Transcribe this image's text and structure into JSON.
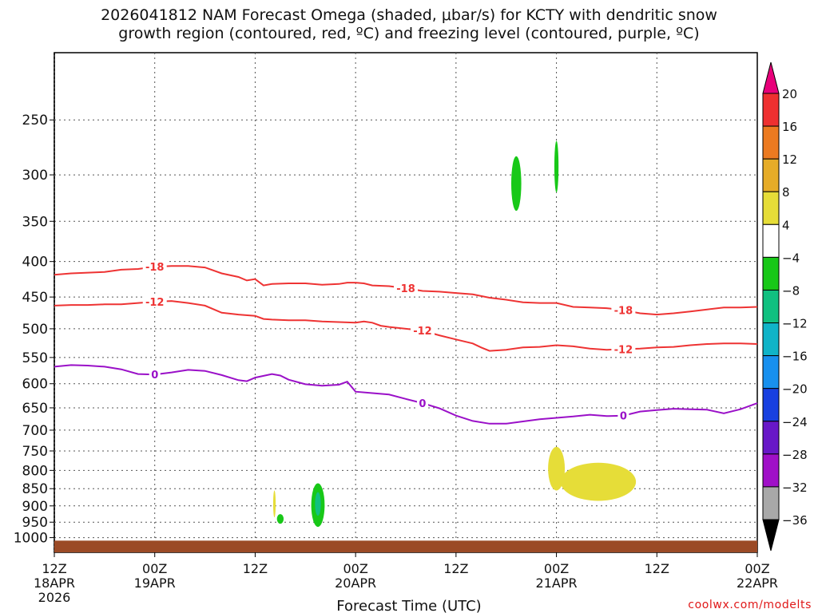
{
  "title_line1": "2026041812 NAM Forecast Omega (shaded, μbar/s) for KCTY with dendritic snow",
  "title_line2": "growth region (contoured, red, ºC) and freezing level (contoured, purple, ºC)",
  "xlabel": "Forecast Time (UTC)",
  "credit": "coolwx.com/modelts",
  "chart_data": {
    "type": "heatmap",
    "title": "2026041812 NAM Forecast Omega (shaded, μbar/s) for KCTY with dendritic snow growth region (contoured, red, ºC) and freezing level (contoured, purple, ºC)",
    "xlabel": "Forecast Time (UTC)",
    "ylabel": "",
    "x_unit": "hours since 2026-04-18 12Z",
    "xlim": [
      0,
      84
    ],
    "ylim": [
      1050,
      200
    ],
    "y_scale": "log-pressure (inverted)",
    "grid": true,
    "xticks": [
      {
        "x": 0,
        "label": "12Z",
        "sub": "18APR",
        "sub2": "2026"
      },
      {
        "x": 12,
        "label": "00Z",
        "sub": "19APR"
      },
      {
        "x": 24,
        "label": "12Z"
      },
      {
        "x": 36,
        "label": "00Z",
        "sub": "20APR"
      },
      {
        "x": 48,
        "label": "12Z"
      },
      {
        "x": 60,
        "label": "00Z",
        "sub": "21APR"
      },
      {
        "x": 72,
        "label": "12Z"
      },
      {
        "x": 84,
        "label": "00Z",
        "sub": "22APR"
      }
    ],
    "yticks": [
      250,
      300,
      350,
      400,
      450,
      500,
      550,
      600,
      650,
      700,
      750,
      800,
      850,
      900,
      950,
      1000
    ],
    "colorbar": {
      "levels": [
        -36,
        -32,
        -28,
        -24,
        -20,
        -16,
        -12,
        -8,
        -4,
        4,
        8,
        12,
        16,
        20
      ],
      "labels": [
        "20",
        "16",
        "12",
        "8",
        "4",
        "−4",
        "−8",
        "−12",
        "−16",
        "−20",
        "−24",
        "−28",
        "−32",
        "−36"
      ],
      "colors": [
        "#e8007a",
        "#ee3030",
        "#ec7a20",
        "#e6ac28",
        "#e6dd38",
        "#ffffff",
        "#18c818",
        "#10c080",
        "#10b4c8",
        "#1890ee",
        "#1840e0",
        "#6818c8",
        "#a010c8",
        "#a8a8a8",
        "#000000"
      ]
    },
    "series": [
      {
        "name": "-18",
        "color": "#ee3333",
        "kind": "contour",
        "points": [
          [
            0,
            418
          ],
          [
            2,
            416
          ],
          [
            4,
            415
          ],
          [
            6,
            414
          ],
          [
            8,
            411
          ],
          [
            10,
            410
          ],
          [
            12,
            407
          ],
          [
            14,
            406
          ],
          [
            16,
            406
          ],
          [
            18,
            408
          ],
          [
            20,
            416
          ],
          [
            22,
            421
          ],
          [
            23,
            426
          ],
          [
            24,
            424
          ],
          [
            25,
            433
          ],
          [
            26,
            431
          ],
          [
            28,
            430
          ],
          [
            30,
            430
          ],
          [
            32,
            432
          ],
          [
            34,
            431
          ],
          [
            35,
            429
          ],
          [
            36,
            429
          ],
          [
            37,
            430
          ],
          [
            38,
            433
          ],
          [
            40,
            434
          ],
          [
            42,
            437
          ],
          [
            44,
            441
          ],
          [
            46,
            442
          ],
          [
            48,
            444
          ],
          [
            50,
            446
          ],
          [
            52,
            451
          ],
          [
            54,
            454
          ],
          [
            56,
            458
          ],
          [
            58,
            459
          ],
          [
            60,
            459
          ],
          [
            62,
            465
          ],
          [
            64,
            466
          ],
          [
            66,
            467
          ],
          [
            68,
            470
          ],
          [
            70,
            475
          ],
          [
            72,
            477
          ],
          [
            74,
            475
          ],
          [
            76,
            472
          ],
          [
            78,
            469
          ],
          [
            80,
            466
          ],
          [
            82,
            466
          ],
          [
            84,
            465
          ]
        ]
      },
      {
        "name": "-12",
        "color": "#ee3333",
        "kind": "contour",
        "points": [
          [
            0,
            463
          ],
          [
            2,
            462
          ],
          [
            4,
            462
          ],
          [
            6,
            461
          ],
          [
            8,
            461
          ],
          [
            10,
            459
          ],
          [
            12,
            457
          ],
          [
            14,
            456
          ],
          [
            16,
            459
          ],
          [
            18,
            463
          ],
          [
            20,
            474
          ],
          [
            22,
            477
          ],
          [
            24,
            479
          ],
          [
            25,
            484
          ],
          [
            26,
            485
          ],
          [
            28,
            486
          ],
          [
            30,
            486
          ],
          [
            32,
            488
          ],
          [
            34,
            489
          ],
          [
            36,
            490
          ],
          [
            37,
            488
          ],
          [
            38,
            490
          ],
          [
            39,
            495
          ],
          [
            40,
            497
          ],
          [
            42,
            500
          ],
          [
            44,
            503
          ],
          [
            46,
            511
          ],
          [
            48,
            518
          ],
          [
            50,
            525
          ],
          [
            51,
            532
          ],
          [
            52,
            538
          ],
          [
            54,
            536
          ],
          [
            56,
            532
          ],
          [
            58,
            531
          ],
          [
            60,
            528
          ],
          [
            62,
            530
          ],
          [
            64,
            534
          ],
          [
            66,
            536
          ],
          [
            68,
            535
          ],
          [
            70,
            534
          ],
          [
            72,
            532
          ],
          [
            74,
            531
          ],
          [
            76,
            528
          ],
          [
            78,
            526
          ],
          [
            80,
            525
          ],
          [
            82,
            525
          ],
          [
            84,
            526
          ]
        ]
      },
      {
        "name": "0",
        "color": "#9a10c8",
        "kind": "contour",
        "points": [
          [
            0,
            567
          ],
          [
            2,
            564
          ],
          [
            4,
            565
          ],
          [
            6,
            567
          ],
          [
            8,
            572
          ],
          [
            10,
            581
          ],
          [
            12,
            582
          ],
          [
            14,
            578
          ],
          [
            16,
            573
          ],
          [
            18,
            575
          ],
          [
            20,
            583
          ],
          [
            22,
            593
          ],
          [
            23,
            595
          ],
          [
            24,
            588
          ],
          [
            26,
            581
          ],
          [
            27,
            584
          ],
          [
            28,
            592
          ],
          [
            30,
            601
          ],
          [
            32,
            604
          ],
          [
            34,
            602
          ],
          [
            35,
            596
          ],
          [
            36,
            616
          ],
          [
            38,
            619
          ],
          [
            40,
            622
          ],
          [
            42,
            631
          ],
          [
            44,
            640
          ],
          [
            46,
            651
          ],
          [
            48,
            667
          ],
          [
            50,
            679
          ],
          [
            52,
            685
          ],
          [
            54,
            685
          ],
          [
            56,
            680
          ],
          [
            58,
            675
          ],
          [
            60,
            672
          ],
          [
            62,
            669
          ],
          [
            64,
            665
          ],
          [
            66,
            668
          ],
          [
            68,
            667
          ],
          [
            70,
            658
          ],
          [
            72,
            655
          ],
          [
            74,
            652
          ],
          [
            76,
            653
          ],
          [
            78,
            654
          ],
          [
            80,
            662
          ],
          [
            82,
            653
          ],
          [
            84,
            640
          ]
        ]
      }
    ],
    "shaded_regions": [
      {
        "level": "-8 to -4",
        "color": "#18c818",
        "x_center": 55.2,
        "x_halfwidth": 0.6,
        "p_top": 282,
        "p_bottom": 338
      },
      {
        "level": "-8 to -4",
        "color": "#18c818",
        "x_center": 60.0,
        "x_halfwidth": 0.25,
        "p_top": 268,
        "p_bottom": 318
      },
      {
        "level": "-8 to -4",
        "color": "#18c818",
        "x_center": 31.5,
        "x_halfwidth": 0.8,
        "p_top": 835,
        "p_bottom": 965
      },
      {
        "level": "-12 to -8",
        "color": "#10c080",
        "x_center": 31.5,
        "x_halfwidth": 0.35,
        "p_top": 860,
        "p_bottom": 930
      },
      {
        "level": "-8 to -4",
        "color": "#18c818",
        "x_center": 27.0,
        "x_halfwidth": 0.4,
        "p_top": 925,
        "p_bottom": 955
      },
      {
        "level": "4 to 8",
        "color": "#e6dd38",
        "x_center": 26.3,
        "x_halfwidth": 0.15,
        "p_top": 855,
        "p_bottom": 935
      },
      {
        "level": "4 to 8",
        "color": "#e6dd38",
        "x_center": 60.0,
        "x_halfwidth": 1.0,
        "p_top": 740,
        "p_bottom": 855
      },
      {
        "level": "4 to 8",
        "color": "#e6dd38",
        "x_center": 65.0,
        "x_halfwidth": 4.5,
        "p_top": 780,
        "p_bottom": 885
      }
    ],
    "terrain": {
      "color": "#9b4a26",
      "p_top": 1010
    }
  }
}
